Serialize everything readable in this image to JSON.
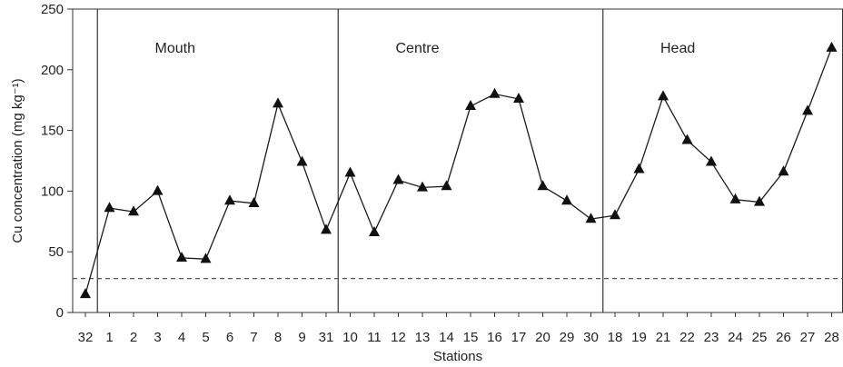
{
  "chart_data": {
    "type": "line",
    "title": "",
    "xlabel": "Stations",
    "ylabel": "Cu concentration (mg kg⁻¹)",
    "categories": [
      "32",
      "1",
      "2",
      "3",
      "4",
      "5",
      "6",
      "7",
      "8",
      "9",
      "31",
      "10",
      "11",
      "12",
      "13",
      "14",
      "15",
      "16",
      "17",
      "20",
      "29",
      "30",
      "18",
      "19",
      "21",
      "22",
      "23",
      "24",
      "25",
      "26",
      "27",
      "28"
    ],
    "series": [
      {
        "values": [
          15,
          86,
          83,
          100,
          45,
          44,
          92,
          90,
          172,
          124,
          68,
          115,
          66,
          109,
          103,
          104,
          170,
          180,
          176,
          104,
          92,
          77,
          80,
          118,
          178,
          142,
          124,
          93,
          91,
          116,
          166,
          218
        ]
      }
    ],
    "ylim": [
      0,
      250
    ],
    "yticks": [
      0,
      50,
      100,
      150,
      200,
      250
    ],
    "reference_line": {
      "value": 28,
      "style": "dashed"
    },
    "regions": [
      {
        "label": "Mouth",
        "start_category": "1",
        "end_category": "31"
      },
      {
        "label": "Centre",
        "start_category": "10",
        "end_category": "30"
      },
      {
        "label": "Head",
        "start_category": "18",
        "end_category": "28"
      }
    ],
    "dividers_after_categories": [
      "32",
      "31",
      "30"
    ],
    "grid": false,
    "marker": "triangle",
    "colors": {
      "line": "#1a1a1a",
      "marker": "#111111",
      "axis": "#333333",
      "reference": "#555555"
    }
  }
}
